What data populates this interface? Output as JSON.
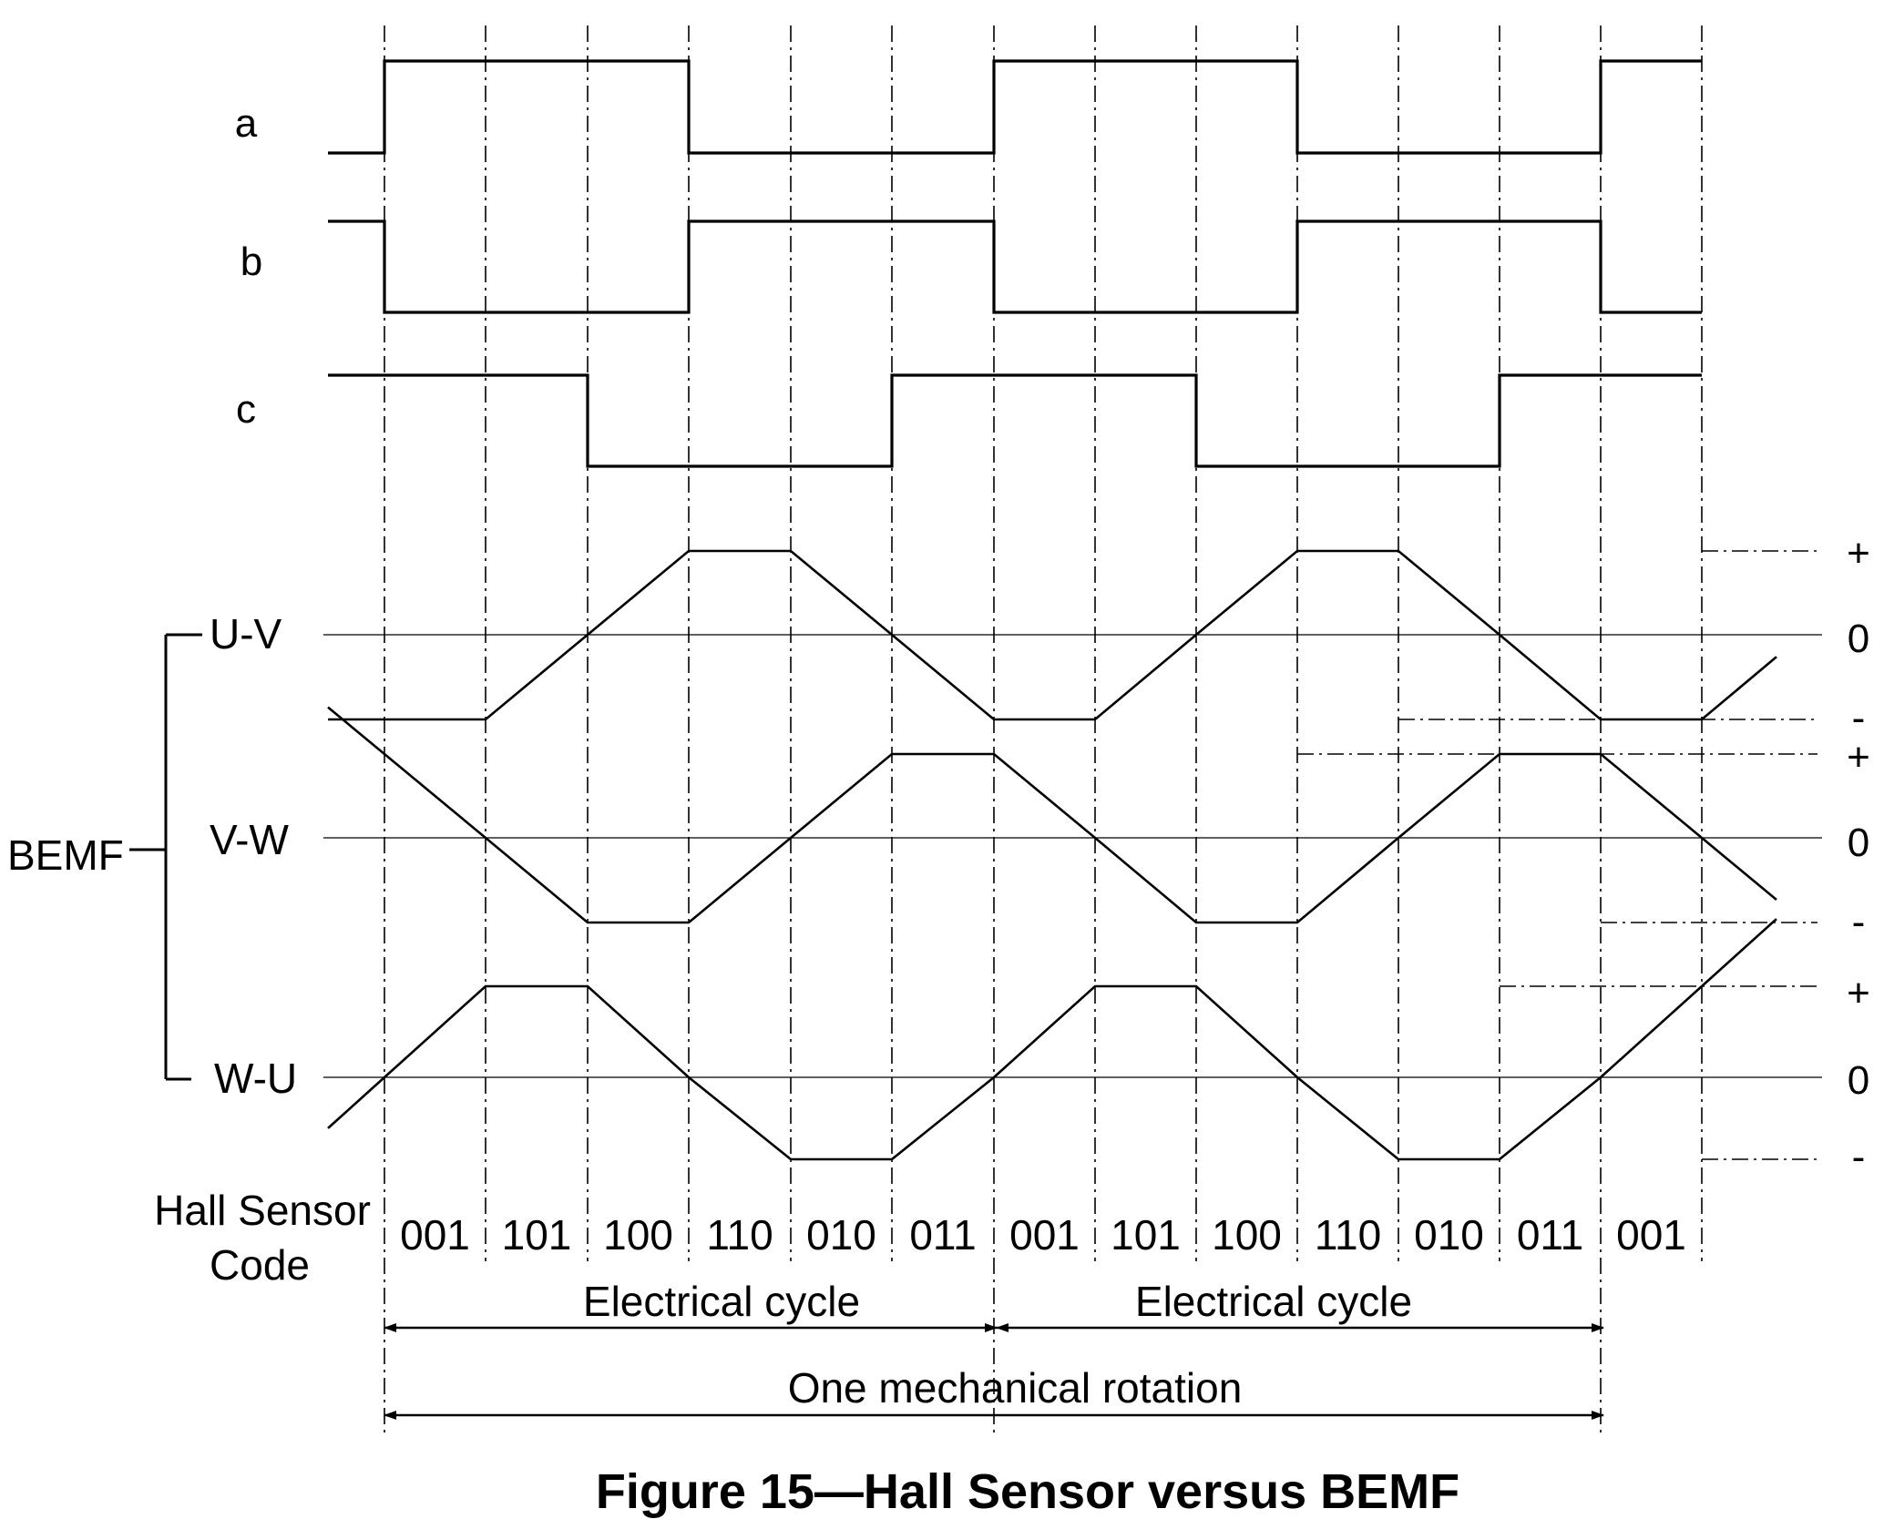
{
  "hall_signals": [
    {
      "name": "a",
      "levels": [
        0,
        1,
        1,
        1,
        0,
        0,
        0,
        1,
        1,
        1,
        0,
        0,
        0,
        1
      ]
    },
    {
      "name": "b",
      "levels": [
        1,
        0,
        0,
        0,
        1,
        1,
        1,
        0,
        0,
        0,
        1,
        1,
        1,
        0
      ]
    },
    {
      "name": "c",
      "levels": [
        1,
        1,
        1,
        0,
        0,
        0,
        1,
        1,
        1,
        0,
        0,
        0,
        1,
        1
      ]
    }
  ],
  "bemf": {
    "group_label": "BEMF",
    "phases": [
      {
        "name": "U-V",
        "plus": "+",
        "zero": "0",
        "minus": "-"
      },
      {
        "name": "V-W",
        "plus": "+",
        "zero": "0",
        "minus": "-"
      },
      {
        "name": "W-U",
        "plus": "+",
        "zero": "0",
        "minus": "-"
      }
    ]
  },
  "hall_code": {
    "label_line1": "Hall Sensor",
    "label_line2": "Code",
    "codes": [
      "001",
      "101",
      "100",
      "110",
      "010",
      "011",
      "001",
      "101",
      "100",
      "110",
      "010",
      "011",
      "001"
    ]
  },
  "spans": {
    "electrical_cycle_1": "Electrical cycle",
    "electrical_cycle_2": "Electrical cycle",
    "mechanical_rotation": "One mechanical rotation"
  },
  "caption": "Figure 15—Hall Sensor versus BEMF"
}
